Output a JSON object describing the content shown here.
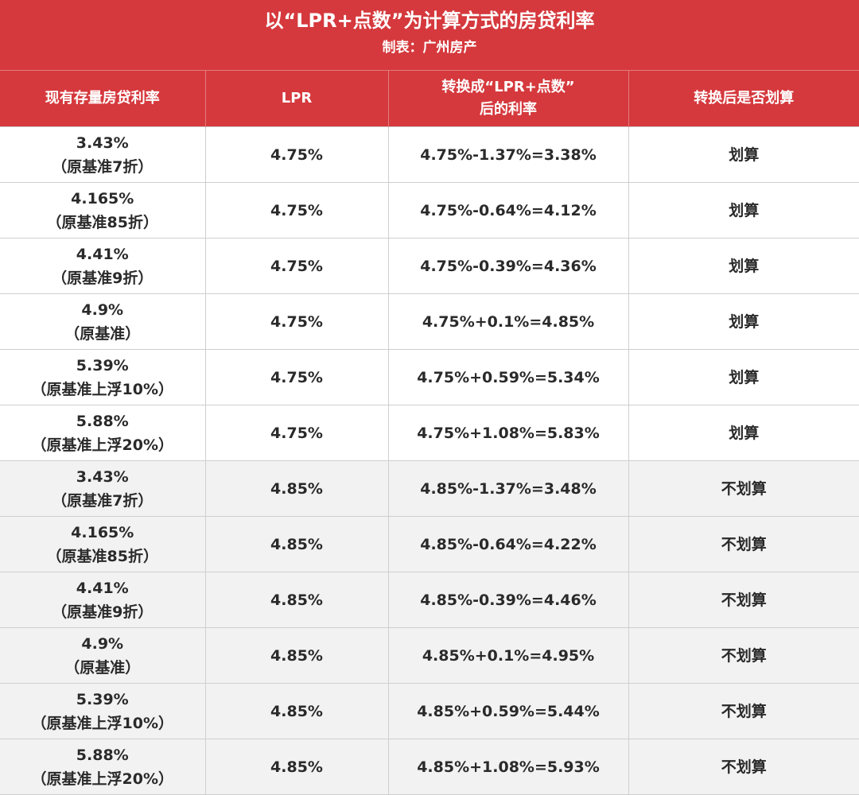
{
  "title": {
    "main": "以“LPR+点数”为计算方式的房贷利率",
    "sub": "制表：广州房产"
  },
  "headers": {
    "col1": "现有存量房贷利率",
    "col2": "LPR",
    "col3_line1": "转换成“LPR+点数”",
    "col3_line2": "后的利率",
    "col4": "转换后是否划算"
  },
  "rows": [
    {
      "rate": "3.43%",
      "note": "（原基准7折）",
      "lpr": "4.75%",
      "converted": "4.75%-1.37%=3.38%",
      "verdict": "划算"
    },
    {
      "rate": "4.165%",
      "note": "（原基准85折）",
      "lpr": "4.75%",
      "converted": "4.75%-0.64%=4.12%",
      "verdict": "划算"
    },
    {
      "rate": "4.41%",
      "note": "（原基准9折）",
      "lpr": "4.75%",
      "converted": "4.75%-0.39%=4.36%",
      "verdict": "划算"
    },
    {
      "rate": "4.9%",
      "note": "（原基准）",
      "lpr": "4.75%",
      "converted": "4.75%+0.1%=4.85%",
      "verdict": "划算"
    },
    {
      "rate": "5.39%",
      "note": "（原基准上浮10%）",
      "lpr": "4.75%",
      "converted": "4.75%+0.59%=5.34%",
      "verdict": "划算"
    },
    {
      "rate": "5.88%",
      "note": "（原基准上浮20%）",
      "lpr": "4.75%",
      "converted": "4.75%+1.08%=5.83%",
      "verdict": "划算"
    },
    {
      "rate": "3.43%",
      "note": "（原基准7折）",
      "lpr": "4.85%",
      "converted": "4.85%-1.37%=3.48%",
      "verdict": "不划算"
    },
    {
      "rate": "4.165%",
      "note": "（原基准85折）",
      "lpr": "4.85%",
      "converted": "4.85%-0.64%=4.22%",
      "verdict": "不划算"
    },
    {
      "rate": "4.41%",
      "note": "（原基准9折）",
      "lpr": "4.85%",
      "converted": "4.85%-0.39%=4.46%",
      "verdict": "不划算"
    },
    {
      "rate": "4.9%",
      "note": "（原基准）",
      "lpr": "4.85%",
      "converted": "4.85%+0.1%=4.95%",
      "verdict": "不划算"
    },
    {
      "rate": "5.39%",
      "note": "（原基准上浮10%）",
      "lpr": "4.85%",
      "converted": "4.85%+0.59%=5.44%",
      "verdict": "不划算"
    },
    {
      "rate": "5.88%",
      "note": "（原基准上浮20%）",
      "lpr": "4.85%",
      "converted": "4.85%+1.08%=5.93%",
      "verdict": "不划算"
    }
  ],
  "colors": {
    "header_bg": "#d5393d",
    "header_text": "#ffffff",
    "alt_row_bg": "#f2f2f2",
    "border": "#cfcfcf"
  }
}
